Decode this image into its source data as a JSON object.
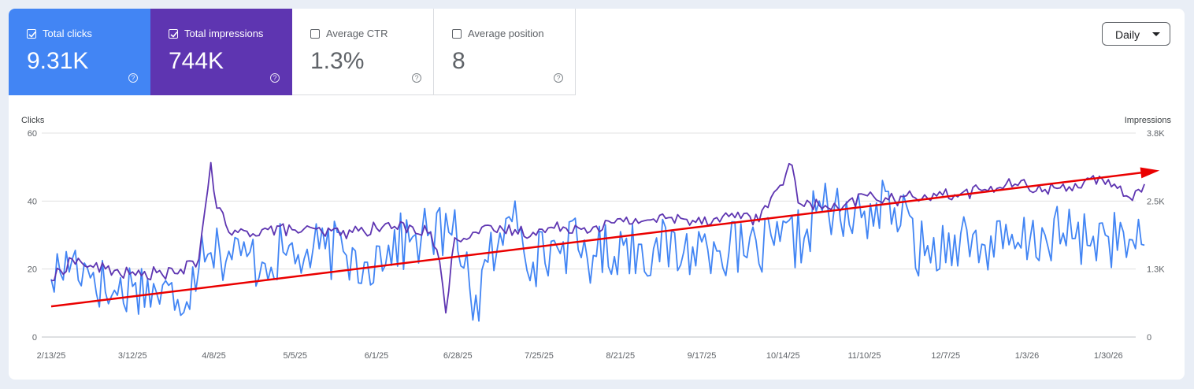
{
  "metrics": [
    {
      "label": "Total clicks",
      "value": "9.31K",
      "checked": true,
      "color": "#4285f4"
    },
    {
      "label": "Total impressions",
      "value": "744K",
      "checked": true,
      "color": "#5e35b1"
    },
    {
      "label": "Average CTR",
      "value": "1.3%",
      "checked": false
    },
    {
      "label": "Average position",
      "value": "8",
      "checked": false
    }
  ],
  "help_glyph": "?",
  "granularity": {
    "label": "Daily"
  },
  "colors": {
    "clicks": "#4285f4",
    "impressions": "#5e35b1",
    "trend_arrow": "#ea0000",
    "grid": "#e0e0e0"
  },
  "chart_data": {
    "type": "line",
    "left_axis": {
      "title": "Clicks",
      "ticks": [
        "60",
        "40",
        "20",
        "0"
      ],
      "range": [
        0,
        60
      ]
    },
    "right_axis": {
      "title": "Impressions",
      "ticks": [
        "3.8K",
        "2.5K",
        "1.3K",
        "0"
      ],
      "range": [
        0,
        3800
      ]
    },
    "x_ticks": [
      "2/13/25",
      "3/12/25",
      "4/8/25",
      "5/5/25",
      "6/1/25",
      "6/28/25",
      "7/25/25",
      "8/21/25",
      "9/17/25",
      "10/14/25",
      "11/10/25",
      "12/7/25",
      "1/3/26",
      "1/30/26"
    ],
    "x_range": [
      "2025-02-13",
      "2026-02-10"
    ],
    "grid": true,
    "series": [
      {
        "name": "Clicks",
        "axis": "left",
        "anchors": [
          [
            0,
            17
          ],
          [
            7,
            23
          ],
          [
            14,
            19
          ],
          [
            20,
            12
          ],
          [
            28,
            16
          ],
          [
            35,
            13
          ],
          [
            42,
            11
          ],
          [
            49,
            20
          ],
          [
            50,
            30
          ],
          [
            56,
            25
          ],
          [
            63,
            24
          ],
          [
            70,
            22
          ],
          [
            77,
            25
          ],
          [
            84,
            23
          ],
          [
            91,
            26
          ],
          [
            98,
            24
          ],
          [
            105,
            22
          ],
          [
            112,
            27
          ],
          [
            119,
            28
          ],
          [
            126,
            31
          ],
          [
            133,
            30
          ],
          [
            138,
            25
          ],
          [
            140,
            5
          ],
          [
            145,
            22
          ],
          [
            150,
            27
          ],
          [
            154,
            40
          ],
          [
            160,
            22
          ],
          [
            170,
            28
          ],
          [
            180,
            24
          ],
          [
            190,
            27
          ],
          [
            200,
            26
          ],
          [
            210,
            25
          ],
          [
            220,
            28
          ],
          [
            230,
            24
          ],
          [
            240,
            27
          ],
          [
            250,
            29
          ],
          [
            255,
            40
          ],
          [
            258,
            37
          ],
          [
            265,
            33
          ],
          [
            270,
            37
          ],
          [
            280,
            38
          ],
          [
            290,
            24
          ],
          [
            300,
            30
          ],
          [
            310,
            27
          ],
          [
            320,
            26
          ],
          [
            330,
            30
          ],
          [
            340,
            29
          ],
          [
            350,
            30
          ],
          [
            360,
            26
          ],
          [
            363,
            27
          ]
        ],
        "noise": 9
      },
      {
        "name": "Impressions",
        "axis": "right",
        "anchors": [
          [
            0,
            1050
          ],
          [
            7,
            1450
          ],
          [
            14,
            1300
          ],
          [
            21,
            1240
          ],
          [
            28,
            1150
          ],
          [
            35,
            1200
          ],
          [
            42,
            1180
          ],
          [
            49,
            1450
          ],
          [
            53,
            3250
          ],
          [
            55,
            2400
          ],
          [
            60,
            1900
          ],
          [
            70,
            2000
          ],
          [
            80,
            2000
          ],
          [
            90,
            1950
          ],
          [
            100,
            1950
          ],
          [
            110,
            2050
          ],
          [
            120,
            2050
          ],
          [
            126,
            1950
          ],
          [
            129,
            1400
          ],
          [
            131,
            450
          ],
          [
            134,
            1850
          ],
          [
            140,
            1950
          ],
          [
            150,
            2000
          ],
          [
            160,
            1950
          ],
          [
            170,
            2050
          ],
          [
            180,
            2050
          ],
          [
            190,
            2150
          ],
          [
            200,
            2200
          ],
          [
            210,
            2200
          ],
          [
            220,
            2200
          ],
          [
            230,
            2300
          ],
          [
            235,
            2150
          ],
          [
            240,
            2700
          ],
          [
            246,
            3200
          ],
          [
            248,
            2500
          ],
          [
            255,
            2450
          ],
          [
            262,
            2350
          ],
          [
            270,
            2650
          ],
          [
            280,
            2550
          ],
          [
            290,
            2650
          ],
          [
            300,
            2650
          ],
          [
            310,
            2750
          ],
          [
            320,
            2850
          ],
          [
            330,
            2750
          ],
          [
            338,
            2800
          ],
          [
            345,
            2950
          ],
          [
            352,
            2800
          ],
          [
            358,
            2600
          ],
          [
            363,
            2850
          ]
        ],
        "noise": 120
      }
    ],
    "trend_arrow": {
      "from": [
        0,
        9
      ],
      "to": [
        368,
        49
      ],
      "axis": "left"
    }
  }
}
